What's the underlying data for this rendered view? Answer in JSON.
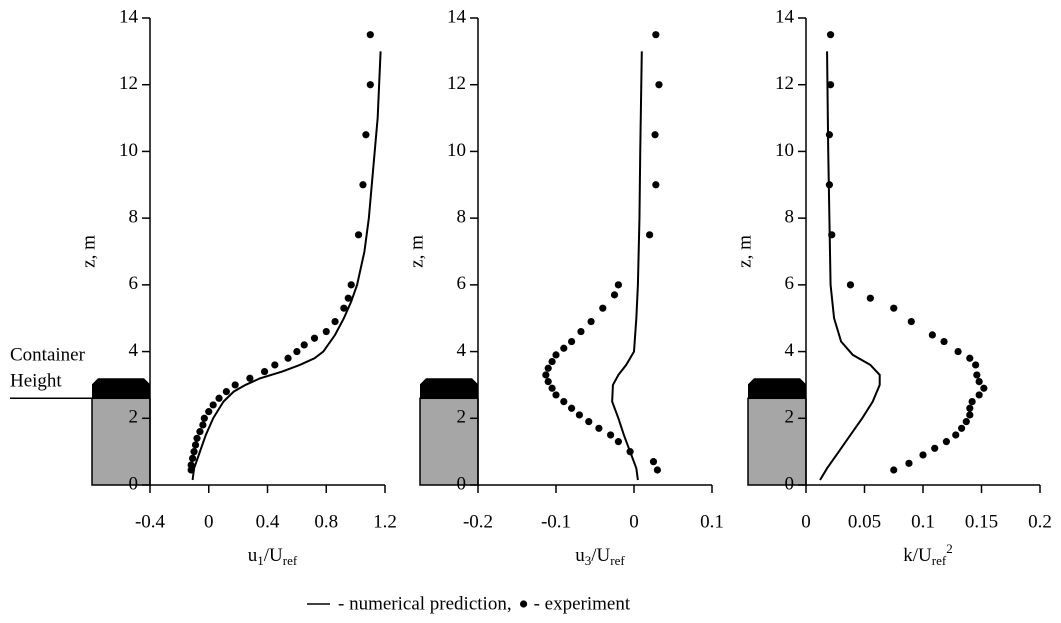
{
  "chart_data": [
    {
      "type": "profile",
      "y_label": "z, m",
      "x_label": [
        {
          "text": "u"
        },
        {
          "text": "1",
          "sub": true
        },
        {
          "text": "/U"
        },
        {
          "text": "ref",
          "sub": true
        }
      ],
      "annotation": [
        "Container",
        "Height"
      ],
      "xlim": [
        -0.4,
        1.2
      ],
      "xticks": [
        -0.4,
        0,
        0.4,
        0.8,
        1.2
      ],
      "ylim": [
        0,
        14
      ],
      "yticks": [
        0,
        2,
        4,
        6,
        8,
        10,
        12,
        14
      ],
      "series": [
        {
          "mode": "line",
          "color": "#000",
          "x": [
            -0.11,
            -0.1,
            -0.06,
            -0.02,
            0.03,
            0.1,
            0.17,
            0.25,
            0.35,
            0.5,
            0.62,
            0.72,
            0.78,
            0.86,
            0.92,
            0.97,
            1.01,
            1.06,
            1.09,
            1.11,
            1.13,
            1.15,
            1.16,
            1.17
          ],
          "y": [
            0.15,
            0.5,
            1.0,
            1.5,
            2.0,
            2.5,
            2.8,
            3.0,
            3.2,
            3.4,
            3.6,
            3.8,
            4.0,
            4.5,
            5.0,
            5.5,
            6.0,
            7.0,
            8.0,
            9.0,
            10.0,
            11.0,
            12.0,
            13.0
          ]
        },
        {
          "mode": "points",
          "color": "#000",
          "x": [
            -0.12,
            -0.12,
            -0.11,
            -0.1,
            -0.09,
            -0.08,
            -0.06,
            -0.04,
            -0.03,
            0.0,
            0.03,
            0.07,
            0.12,
            0.18,
            0.28,
            0.38,
            0.45,
            0.54,
            0.6,
            0.65,
            0.72,
            0.8,
            0.86,
            0.92,
            0.95,
            0.97,
            1.02,
            1.05,
            1.07,
            1.1,
            1.1
          ],
          "y": [
            0.45,
            0.6,
            0.8,
            1.0,
            1.2,
            1.4,
            1.6,
            1.8,
            2.0,
            2.2,
            2.4,
            2.6,
            2.8,
            3.0,
            3.2,
            3.4,
            3.6,
            3.8,
            4.0,
            4.2,
            4.4,
            4.6,
            4.9,
            5.3,
            5.6,
            6.0,
            7.5,
            9.0,
            10.5,
            12.0,
            13.5
          ]
        }
      ]
    },
    {
      "type": "profile",
      "y_label": "z, m",
      "x_label": [
        {
          "text": "u"
        },
        {
          "text": "3",
          "sub": true
        },
        {
          "text": "/U"
        },
        {
          "text": "ref",
          "sub": true
        }
      ],
      "xlim": [
        -0.2,
        0.1
      ],
      "xticks": [
        -0.2,
        -0.1,
        0,
        0.1
      ],
      "ylim": [
        0,
        14
      ],
      "yticks": [
        0,
        2,
        4,
        6,
        8,
        10,
        12,
        14
      ],
      "series": [
        {
          "mode": "line",
          "color": "#000",
          "x": [
            0.005,
            0.003,
            -0.005,
            -0.013,
            -0.02,
            -0.028,
            -0.027,
            -0.02,
            -0.01,
            0.0,
            0.003,
            0.005,
            0.007,
            0.008,
            0.01
          ],
          "y": [
            0.15,
            0.5,
            1.0,
            1.5,
            2.0,
            2.5,
            3.0,
            3.3,
            3.6,
            4.0,
            5.0,
            6.0,
            8.0,
            10.0,
            13.0
          ]
        },
        {
          "mode": "points",
          "color": "#000",
          "x": [
            0.03,
            0.025,
            -0.005,
            -0.02,
            -0.03,
            -0.045,
            -0.058,
            -0.07,
            -0.08,
            -0.09,
            -0.1,
            -0.105,
            -0.11,
            -0.113,
            -0.11,
            -0.105,
            -0.1,
            -0.09,
            -0.08,
            -0.068,
            -0.055,
            -0.04,
            -0.025,
            -0.02,
            0.02,
            0.028,
            0.027,
            0.032,
            0.028
          ],
          "y": [
            0.45,
            0.7,
            1.0,
            1.3,
            1.5,
            1.7,
            1.9,
            2.1,
            2.3,
            2.5,
            2.7,
            2.9,
            3.1,
            3.3,
            3.5,
            3.7,
            3.9,
            4.1,
            4.3,
            4.6,
            4.9,
            5.3,
            5.7,
            6.0,
            7.5,
            9.0,
            10.5,
            12.0,
            13.5
          ]
        }
      ]
    },
    {
      "type": "profile",
      "y_label": "z, m",
      "x_label": [
        {
          "text": "k/U"
        },
        {
          "text": "ref",
          "sub": true
        },
        {
          "text": "2",
          "sup": true
        }
      ],
      "xlim": [
        0,
        0.2
      ],
      "xticks": [
        0,
        0.05,
        0.1,
        0.15,
        0.2
      ],
      "ylim": [
        0,
        14
      ],
      "yticks": [
        0,
        2,
        4,
        6,
        8,
        10,
        12,
        14
      ],
      "series": [
        {
          "mode": "line",
          "color": "#000",
          "x": [
            0.012,
            0.018,
            0.028,
            0.038,
            0.048,
            0.057,
            0.063,
            0.063,
            0.055,
            0.04,
            0.03,
            0.024,
            0.021,
            0.02,
            0.019,
            0.018
          ],
          "y": [
            0.15,
            0.5,
            1.0,
            1.5,
            2.0,
            2.5,
            3.0,
            3.3,
            3.6,
            3.9,
            4.3,
            5.0,
            6.0,
            8.0,
            10.0,
            13.0
          ]
        },
        {
          "mode": "points",
          "color": "#000",
          "x": [
            0.075,
            0.088,
            0.1,
            0.11,
            0.12,
            0.128,
            0.133,
            0.137,
            0.14,
            0.14,
            0.142,
            0.148,
            0.152,
            0.148,
            0.146,
            0.145,
            0.14,
            0.13,
            0.118,
            0.108,
            0.09,
            0.075,
            0.055,
            0.038,
            0.022,
            0.02,
            0.02,
            0.021,
            0.021
          ],
          "y": [
            0.45,
            0.65,
            0.9,
            1.1,
            1.3,
            1.5,
            1.7,
            1.9,
            2.1,
            2.3,
            2.5,
            2.7,
            2.9,
            3.1,
            3.3,
            3.6,
            3.8,
            4.0,
            4.3,
            4.5,
            4.9,
            5.3,
            5.6,
            6.0,
            7.5,
            9.0,
            10.5,
            12.0,
            13.5
          ]
        }
      ]
    }
  ],
  "legend": [
    "- numerical prediction,",
    "- experiment"
  ]
}
